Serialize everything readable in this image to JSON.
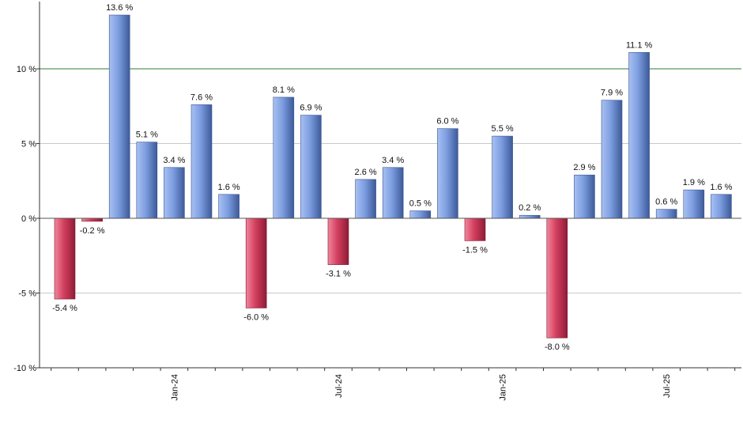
{
  "chart_data": {
    "type": "bar",
    "title": "",
    "xlabel": "",
    "ylabel": "",
    "ylim": [
      -10,
      14.5
    ],
    "y_ticks": [
      -10,
      -5,
      0,
      5,
      10
    ],
    "y_tick_labels": [
      "-10 %",
      "-5 %",
      "0 %",
      "5 %",
      "10 %"
    ],
    "reference_line": 10,
    "x_ticks": [
      {
        "label": "Jan-24",
        "index": 4
      },
      {
        "label": "Jul-24",
        "index": 10
      },
      {
        "label": "Jan-25",
        "index": 16
      },
      {
        "label": "Jul-25",
        "index": 22
      }
    ],
    "values": [
      -5.4,
      -0.2,
      13.6,
      5.1,
      3.4,
      7.6,
      1.6,
      -6.0,
      8.1,
      6.9,
      -3.1,
      2.6,
      3.4,
      0.5,
      6.0,
      -1.5,
      5.5,
      0.2,
      -8.0,
      2.9,
      7.9,
      11.1,
      0.6,
      1.9,
      1.6
    ],
    "value_labels": [
      "-5.4 %",
      "-0.2 %",
      "13.6 %",
      "5.1 %",
      "3.4 %",
      "7.6 %",
      "1.6 %",
      "-6.0 %",
      "8.1 %",
      "6.9 %",
      "-3.1 %",
      "2.6 %",
      "3.4 %",
      "0.5 %",
      "6.0 %",
      "-1.5 %",
      "5.5 %",
      "0.2 %",
      "-8.0 %",
      "2.9 %",
      "7.9 %",
      "11.1 %",
      "0.6 %",
      "1.9 %",
      "1.6 %"
    ],
    "grid": true,
    "legend": "none",
    "colors": {
      "positive": "#7f9fe0",
      "negative": "#cc3355",
      "reference_line": "#2e7d32",
      "grid": "#c8c8c8",
      "axis": "#333333"
    }
  }
}
